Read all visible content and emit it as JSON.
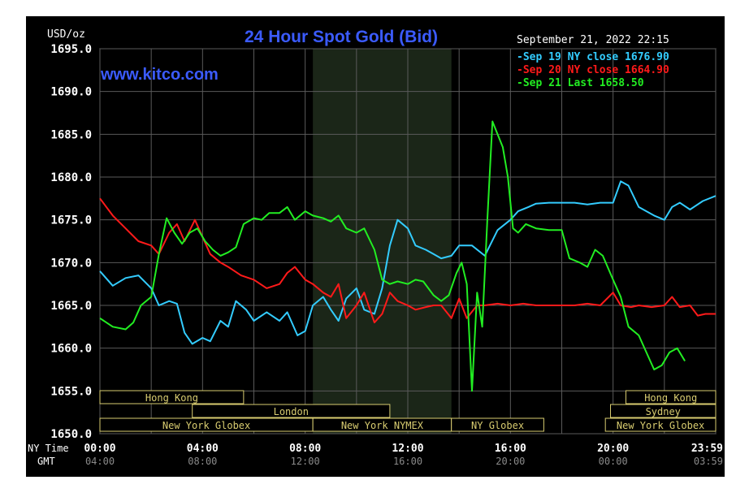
{
  "title": "24 Hour Spot Gold (Bid)",
  "site": "www.kitco.com",
  "unit_label": "USD/oz",
  "timestamp": "September 21, 2022 22:15",
  "legend": [
    {
      "text": "Sep 19 NY close 1676.90",
      "color": "#33ccff"
    },
    {
      "text": "Sep 20 NY close 1664.90",
      "color": "#ff1a1a"
    },
    {
      "text": "Sep 21 Last 1658.50",
      "color": "#22ee22"
    }
  ],
  "axis": {
    "ny_label": "NY Time",
    "gmt_label": "GMT",
    "ny_ticks": [
      "00:00",
      "04:00",
      "08:00",
      "12:00",
      "16:00",
      "20:00",
      "23:59"
    ],
    "gmt_ticks": [
      "04:00",
      "08:00",
      "12:00",
      "16:00",
      "20:00",
      "00:00",
      "03:59"
    ]
  },
  "sessions": [
    {
      "name": "Hong Kong",
      "row": 0,
      "start": 0,
      "end": 5.6
    },
    {
      "name": "Hong Kong",
      "row": 0,
      "start": 20.5,
      "end": 24
    },
    {
      "name": "London",
      "row": 1,
      "start": 3.6,
      "end": 11.3
    },
    {
      "name": "Sydney",
      "row": 1,
      "start": 19.9,
      "end": 24
    },
    {
      "name": "New York Globex",
      "row": 2,
      "start": 0,
      "end": 8.3
    },
    {
      "name": "New York NYMEX",
      "row": 2,
      "start": 8.3,
      "end": 13.7
    },
    {
      "name": "NY Globex",
      "row": 2,
      "start": 13.7,
      "end": 17.3
    },
    {
      "name": "New York Globex",
      "row": 2,
      "start": 19.7,
      "end": 24
    }
  ],
  "chart_data": {
    "type": "line",
    "x_unit": "NY Time (hours)",
    "ylim": [
      1650,
      1695
    ],
    "y_ticks": [
      "1650.0",
      "1655.0",
      "1660.0",
      "1665.0",
      "1670.0",
      "1675.0",
      "1680.0",
      "1685.0",
      "1690.0",
      "1695.0"
    ],
    "grid": true,
    "shaded_region": {
      "start": 8.3,
      "end": 13.7
    },
    "series": [
      {
        "name": "Sep 19 NY close 1676.90",
        "color": "#33ccff",
        "points": [
          [
            0,
            1669.0
          ],
          [
            0.5,
            1667.3
          ],
          [
            1,
            1668.2
          ],
          [
            1.5,
            1668.5
          ],
          [
            2,
            1667.0
          ],
          [
            2.3,
            1665.0
          ],
          [
            2.7,
            1665.5
          ],
          [
            3,
            1665.2
          ],
          [
            3.3,
            1661.8
          ],
          [
            3.6,
            1660.5
          ],
          [
            4,
            1661.2
          ],
          [
            4.3,
            1660.8
          ],
          [
            4.7,
            1663.2
          ],
          [
            5,
            1662.5
          ],
          [
            5.3,
            1665.5
          ],
          [
            5.7,
            1664.5
          ],
          [
            6,
            1663.2
          ],
          [
            6.5,
            1664.2
          ],
          [
            7,
            1663.2
          ],
          [
            7.3,
            1664.2
          ],
          [
            7.7,
            1661.5
          ],
          [
            8,
            1662.0
          ],
          [
            8.3,
            1665.0
          ],
          [
            8.7,
            1666.0
          ],
          [
            9,
            1664.5
          ],
          [
            9.3,
            1663.2
          ],
          [
            9.6,
            1665.8
          ],
          [
            10,
            1667.0
          ],
          [
            10.3,
            1664.5
          ],
          [
            10.7,
            1664.0
          ],
          [
            11,
            1667.0
          ],
          [
            11.3,
            1672.0
          ],
          [
            11.6,
            1675.0
          ],
          [
            12,
            1674.0
          ],
          [
            12.3,
            1672.0
          ],
          [
            12.7,
            1671.5
          ],
          [
            13,
            1671.0
          ],
          [
            13.3,
            1670.5
          ],
          [
            13.7,
            1670.8
          ],
          [
            14,
            1672.0
          ],
          [
            14.5,
            1672.0
          ],
          [
            15,
            1670.8
          ],
          [
            15.5,
            1673.8
          ],
          [
            16,
            1675.0
          ],
          [
            16.3,
            1676.0
          ],
          [
            16.7,
            1676.5
          ],
          [
            17,
            1676.9
          ],
          [
            17.5,
            1677.0
          ],
          [
            18,
            1677.0
          ],
          [
            18.5,
            1677.0
          ],
          [
            19,
            1676.8
          ],
          [
            19.5,
            1677.0
          ],
          [
            20,
            1677.0
          ],
          [
            20.3,
            1679.5
          ],
          [
            20.6,
            1679.0
          ],
          [
            21,
            1676.5
          ],
          [
            21.3,
            1676.0
          ],
          [
            21.6,
            1675.5
          ],
          [
            22,
            1675.0
          ],
          [
            22.3,
            1676.5
          ],
          [
            22.6,
            1677.0
          ],
          [
            23,
            1676.2
          ],
          [
            23.5,
            1677.2
          ],
          [
            24,
            1677.8
          ]
        ]
      },
      {
        "name": "Sep 20 NY close 1664.90",
        "color": "#ff1a1a",
        "points": [
          [
            0,
            1677.5
          ],
          [
            0.5,
            1675.5
          ],
          [
            1,
            1674.0
          ],
          [
            1.5,
            1672.5
          ],
          [
            2,
            1672.0
          ],
          [
            2.3,
            1671.0
          ],
          [
            2.7,
            1673.5
          ],
          [
            3,
            1674.5
          ],
          [
            3.3,
            1672.5
          ],
          [
            3.7,
            1675.0
          ],
          [
            4,
            1673.0
          ],
          [
            4.3,
            1671.0
          ],
          [
            4.7,
            1670.0
          ],
          [
            5,
            1669.5
          ],
          [
            5.5,
            1668.5
          ],
          [
            6,
            1668.0
          ],
          [
            6.5,
            1667.0
          ],
          [
            7,
            1667.5
          ],
          [
            7.3,
            1668.8
          ],
          [
            7.6,
            1669.5
          ],
          [
            8,
            1668.0
          ],
          [
            8.3,
            1667.5
          ],
          [
            8.7,
            1666.5
          ],
          [
            9,
            1666.0
          ],
          [
            9.3,
            1667.5
          ],
          [
            9.6,
            1663.5
          ],
          [
            10,
            1665.0
          ],
          [
            10.3,
            1666.5
          ],
          [
            10.7,
            1663.0
          ],
          [
            11,
            1664.0
          ],
          [
            11.3,
            1666.5
          ],
          [
            11.6,
            1665.5
          ],
          [
            12,
            1665.0
          ],
          [
            12.3,
            1664.5
          ],
          [
            12.7,
            1664.8
          ],
          [
            13,
            1665.0
          ],
          [
            13.3,
            1665.0
          ],
          [
            13.7,
            1663.5
          ],
          [
            14,
            1665.8
          ],
          [
            14.3,
            1663.5
          ],
          [
            14.7,
            1665.0
          ],
          [
            15,
            1665.0
          ],
          [
            15.5,
            1665.2
          ],
          [
            16,
            1665.0
          ],
          [
            16.5,
            1665.2
          ],
          [
            17,
            1665.0
          ],
          [
            17.5,
            1665.0
          ],
          [
            18,
            1665.0
          ],
          [
            18.5,
            1665.0
          ],
          [
            19,
            1665.2
          ],
          [
            19.5,
            1665.0
          ],
          [
            20,
            1666.5
          ],
          [
            20.3,
            1665.0
          ],
          [
            20.7,
            1664.8
          ],
          [
            21,
            1665.0
          ],
          [
            21.5,
            1664.8
          ],
          [
            22,
            1665.0
          ],
          [
            22.3,
            1666.0
          ],
          [
            22.6,
            1664.8
          ],
          [
            23,
            1665.0
          ],
          [
            23.3,
            1663.8
          ],
          [
            23.6,
            1664.0
          ],
          [
            24,
            1664.0
          ]
        ]
      },
      {
        "name": "Sep 21 Last 1658.50",
        "color": "#22ee22",
        "points": [
          [
            0,
            1663.5
          ],
          [
            0.5,
            1662.5
          ],
          [
            1,
            1662.2
          ],
          [
            1.3,
            1663.0
          ],
          [
            1.6,
            1665.0
          ],
          [
            2,
            1666.0
          ],
          [
            2.3,
            1671.0
          ],
          [
            2.6,
            1675.2
          ],
          [
            2.9,
            1673.5
          ],
          [
            3.2,
            1672.2
          ],
          [
            3.5,
            1673.5
          ],
          [
            3.8,
            1674.0
          ],
          [
            4.1,
            1672.5
          ],
          [
            4.4,
            1671.5
          ],
          [
            4.7,
            1670.8
          ],
          [
            5,
            1671.2
          ],
          [
            5.3,
            1671.8
          ],
          [
            5.6,
            1674.5
          ],
          [
            6,
            1675.2
          ],
          [
            6.3,
            1675.0
          ],
          [
            6.6,
            1675.8
          ],
          [
            7,
            1675.8
          ],
          [
            7.3,
            1676.5
          ],
          [
            7.6,
            1675.0
          ],
          [
            8,
            1676.0
          ],
          [
            8.3,
            1675.5
          ],
          [
            8.7,
            1675.2
          ],
          [
            9,
            1674.8
          ],
          [
            9.3,
            1675.5
          ],
          [
            9.6,
            1674.0
          ],
          [
            10,
            1673.5
          ],
          [
            10.3,
            1674.0
          ],
          [
            10.7,
            1671.5
          ],
          [
            11,
            1668.0
          ],
          [
            11.3,
            1667.5
          ],
          [
            11.6,
            1667.8
          ],
          [
            12,
            1667.5
          ],
          [
            12.3,
            1668.0
          ],
          [
            12.6,
            1667.8
          ],
          [
            13,
            1666.2
          ],
          [
            13.3,
            1665.5
          ],
          [
            13.6,
            1666.2
          ],
          [
            13.9,
            1668.8
          ],
          [
            14.1,
            1670.0
          ],
          [
            14.3,
            1667.5
          ],
          [
            14.5,
            1655.0
          ],
          [
            14.7,
            1666.5
          ],
          [
            14.9,
            1662.5
          ],
          [
            15.1,
            1675.0
          ],
          [
            15.3,
            1686.5
          ],
          [
            15.5,
            1685.0
          ],
          [
            15.7,
            1683.5
          ],
          [
            15.9,
            1680.0
          ],
          [
            16.1,
            1674.0
          ],
          [
            16.3,
            1673.5
          ],
          [
            16.6,
            1674.5
          ],
          [
            17,
            1674.0
          ],
          [
            17.5,
            1673.8
          ],
          [
            18,
            1673.8
          ],
          [
            18.3,
            1670.5
          ],
          [
            18.7,
            1670.0
          ],
          [
            19,
            1669.5
          ],
          [
            19.3,
            1671.5
          ],
          [
            19.6,
            1670.8
          ],
          [
            20,
            1668.0
          ],
          [
            20.3,
            1666.0
          ],
          [
            20.6,
            1662.5
          ],
          [
            21,
            1661.5
          ],
          [
            21.3,
            1659.5
          ],
          [
            21.6,
            1657.5
          ],
          [
            21.9,
            1658.0
          ],
          [
            22.2,
            1659.5
          ],
          [
            22.5,
            1660.0
          ],
          [
            22.8,
            1658.5
          ]
        ]
      }
    ]
  }
}
